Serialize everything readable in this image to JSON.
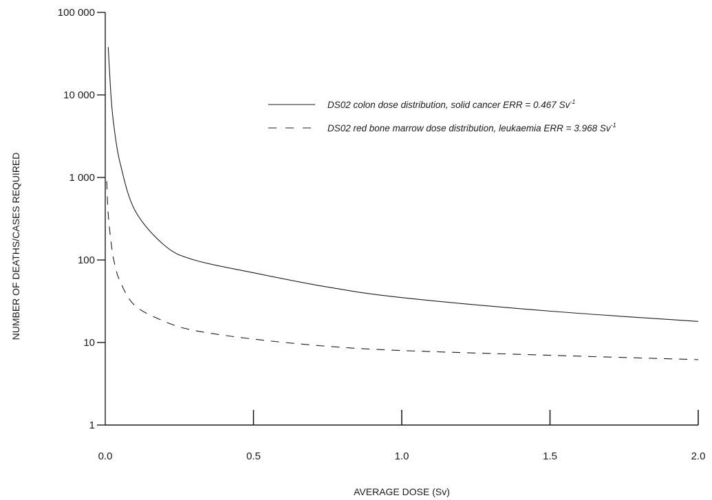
{
  "chart_data": {
    "type": "line",
    "xlabel": "AVERAGE DOSE (Sv)",
    "ylabel": "NUMBER OF DEATHS/CASES REQUIRED",
    "xlim": [
      0.0,
      2.0
    ],
    "ylim": [
      1,
      100000
    ],
    "yscale": "log",
    "x_ticks": [
      0.0,
      0.5,
      1.0,
      1.5,
      2.0
    ],
    "x_tick_labels": [
      "0.0",
      "0.5",
      "1.0",
      "1.5",
      "2.0"
    ],
    "y_ticks": [
      1,
      10,
      100,
      1000,
      10000,
      100000
    ],
    "y_tick_labels": [
      "1",
      "10",
      "100",
      "1 000",
      "10 000",
      "100 000"
    ],
    "grid": false,
    "legend_position": "top-right",
    "series": [
      {
        "legend_text": "DS02 colon dose distribution, solid cancer ERR = 0.467 Sv",
        "legend_superscript": "-1",
        "line_style": "solid",
        "color": "#1a1a1a",
        "x": [
          0.01,
          0.02,
          0.03,
          0.05,
          0.1,
          0.2,
          0.3,
          0.5,
          0.75,
          1.0,
          1.5,
          2.0
        ],
        "y": [
          38000,
          9000,
          4000,
          1500,
          400,
          150,
          100,
          70,
          47,
          35,
          24,
          18
        ]
      },
      {
        "legend_text": "DS02 red bone marrow dose distribution, leukaemia ERR = 3.968 Sv",
        "legend_superscript": "-1",
        "line_style": "dashed",
        "color": "#1a1a1a",
        "x": [
          0.005,
          0.01,
          0.02,
          0.03,
          0.05,
          0.1,
          0.2,
          0.3,
          0.5,
          0.75,
          1.0,
          1.5,
          2.0
        ],
        "y": [
          900,
          360,
          160,
          95,
          55,
          28,
          18,
          14,
          11,
          9,
          8,
          7,
          6.2
        ]
      }
    ]
  }
}
